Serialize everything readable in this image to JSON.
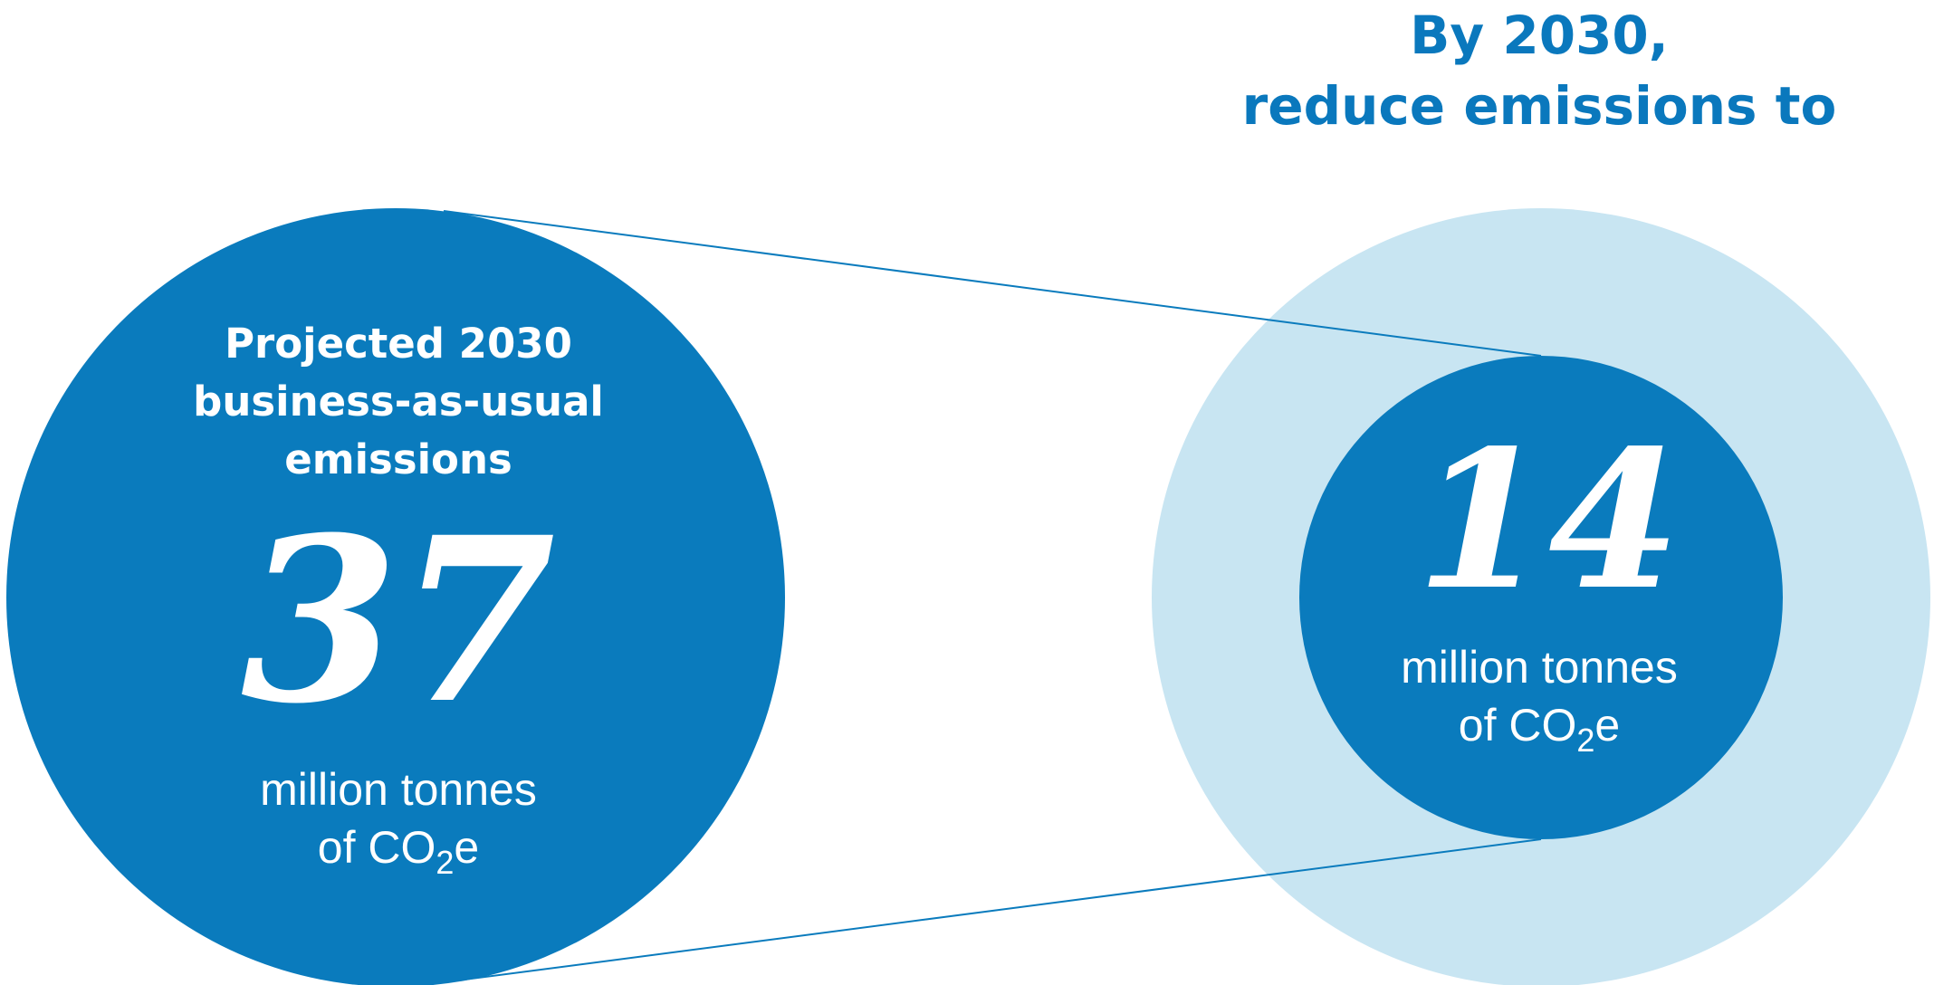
{
  "header": {
    "line1": "By 2030,",
    "line2": "reduce emissions to"
  },
  "left_circle": {
    "heading_line1": "Projected 2030",
    "heading_line2": "business-as-usual",
    "heading_line3": "emissions",
    "value": "37",
    "unit_line1": "million tonnes",
    "unit_line2_prefix": "of CO",
    "unit_line2_sub": "2",
    "unit_line2_suffix": "e"
  },
  "right_circle": {
    "value": "14",
    "unit_line1": "million tonnes",
    "unit_line2_prefix": "of CO",
    "unit_line2_sub": "2",
    "unit_line2_suffix": "e"
  },
  "colors": {
    "dark_blue": "#0a7bbd",
    "light_blue": "#c8e5f2",
    "header_blue": "#0a78bd",
    "connector": "#0a7bbd"
  }
}
